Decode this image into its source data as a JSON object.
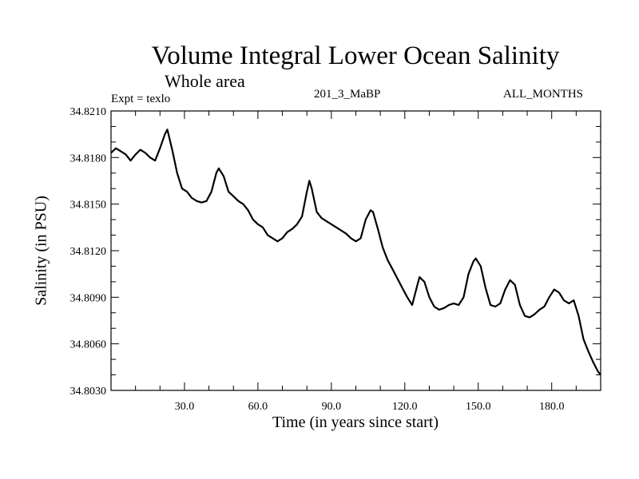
{
  "chart_data": {
    "type": "line",
    "title": "Volume Integral Lower Ocean Salinity",
    "subtitle": "Whole area",
    "annotations": {
      "experiment": "Expt = texlo",
      "run": "201_3_MaBP",
      "months": "ALL_MONTHS"
    },
    "xlabel": "Time (in years since start)",
    "ylabel": "Salinity (in PSU)",
    "xlim": [
      0,
      200
    ],
    "ylim": [
      34.803,
      34.821
    ],
    "xticks": [
      30,
      60,
      90,
      120,
      150,
      180
    ],
    "xtick_labels": [
      "30.0",
      "60.0",
      "90.0",
      "120.0",
      "150.0",
      "180.0"
    ],
    "yticks": [
      34.803,
      34.806,
      34.809,
      34.812,
      34.815,
      34.818,
      34.821
    ],
    "ytick_labels": [
      "34.8030",
      "34.8060",
      "34.8090",
      "34.8120",
      "34.8150",
      "34.8180",
      "34.8210"
    ],
    "grid": false,
    "legend": "none",
    "series": [
      {
        "name": "Lower Ocean Salinity",
        "x": [
          0,
          2,
          4,
          6,
          8,
          10,
          12,
          14,
          16,
          18,
          20,
          22,
          23,
          25,
          27,
          29,
          31,
          33,
          35,
          37,
          39,
          41,
          43,
          44,
          46,
          48,
          50,
          52,
          54,
          56,
          58,
          60,
          62,
          64,
          66,
          68,
          70,
          72,
          74,
          76,
          78,
          80,
          81,
          82,
          84,
          86,
          88,
          90,
          92,
          94,
          96,
          98,
          100,
          102,
          104,
          106,
          107,
          109,
          111,
          113,
          115,
          117,
          119,
          121,
          123,
          125,
          126,
          128,
          130,
          132,
          134,
          136,
          138,
          140,
          142,
          144,
          146,
          148,
          149,
          151,
          153,
          155,
          157,
          159,
          161,
          163,
          165,
          167,
          169,
          171,
          173,
          175,
          177,
          179,
          181,
          183,
          185,
          187,
          189,
          191,
          193,
          195,
          197,
          199,
          200
        ],
        "y": [
          34.8183,
          34.8186,
          34.8184,
          34.8182,
          34.8178,
          34.8182,
          34.8185,
          34.8183,
          34.818,
          34.8178,
          34.8186,
          34.8195,
          34.8198,
          34.8185,
          34.817,
          34.816,
          34.8158,
          34.8154,
          34.8152,
          34.8151,
          34.8152,
          34.8158,
          34.817,
          34.8173,
          34.8168,
          34.8158,
          34.8155,
          34.8152,
          34.815,
          34.8146,
          34.814,
          34.8137,
          34.8135,
          34.813,
          34.8128,
          34.8126,
          34.8128,
          34.8132,
          34.8134,
          34.8137,
          34.8142,
          34.8158,
          34.8165,
          34.816,
          34.8145,
          34.8141,
          34.8139,
          34.8137,
          34.8135,
          34.8133,
          34.8131,
          34.8128,
          34.8126,
          34.8128,
          34.814,
          34.8146,
          34.8145,
          34.8134,
          34.8122,
          34.8114,
          34.8108,
          34.8102,
          34.8096,
          34.809,
          34.8085,
          34.8097,
          34.8103,
          34.81,
          34.809,
          34.8084,
          34.8082,
          34.8083,
          34.8085,
          34.8086,
          34.8085,
          34.809,
          34.8105,
          34.8113,
          34.8115,
          34.811,
          34.8096,
          34.8085,
          34.8084,
          34.8086,
          34.8095,
          34.8101,
          34.8098,
          34.8085,
          34.8078,
          34.8077,
          34.8079,
          34.8082,
          34.8084,
          34.809,
          34.8095,
          34.8093,
          34.8088,
          34.8086,
          34.8088,
          34.8078,
          34.8063,
          34.8055,
          34.8048,
          34.8042,
          34.804
        ]
      }
    ]
  }
}
